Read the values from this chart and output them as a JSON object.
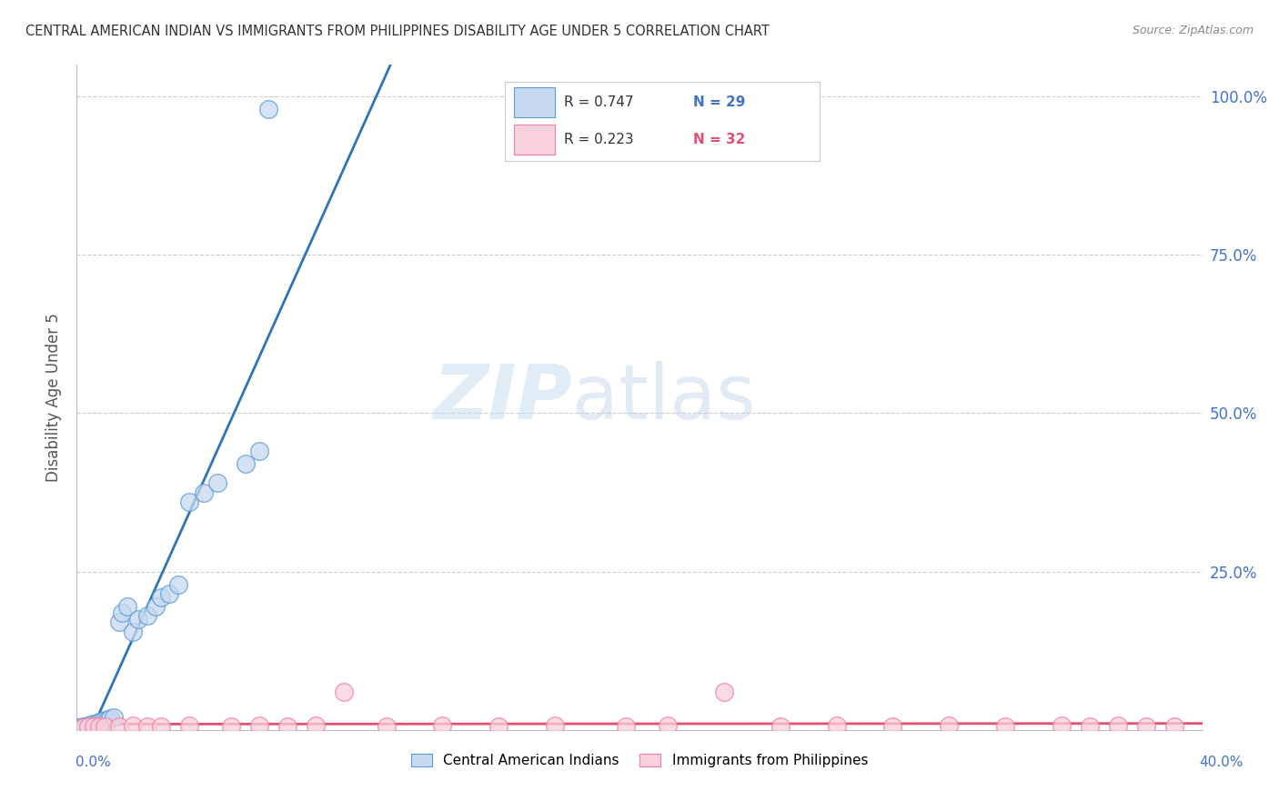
{
  "title": "CENTRAL AMERICAN INDIAN VS IMMIGRANTS FROM PHILIPPINES DISABILITY AGE UNDER 5 CORRELATION CHART",
  "source": "Source: ZipAtlas.com",
  "ylabel": "Disability Age Under 5",
  "watermark_zip": "ZIP",
  "watermark_atlas": "atlas",
  "legend_r1": "R = 0.747",
  "legend_n1": "N = 29",
  "legend_r2": "R = 0.223",
  "legend_n2": "N = 32",
  "legend_label1": "Central American Indians",
  "legend_label2": "Immigrants from Philippines",
  "ytick_vals": [
    0.0,
    0.25,
    0.5,
    0.75,
    1.0
  ],
  "ytick_labels": [
    "",
    "25.0%",
    "50.0%",
    "75.0%",
    "100.0%"
  ],
  "xlim": [
    0.0,
    0.4
  ],
  "ylim": [
    0.0,
    1.05
  ],
  "blue_fill": "#c6d9f0",
  "blue_edge": "#5b9bd5",
  "blue_line": "#2e75b6",
  "pink_fill": "#f9d0dc",
  "pink_edge": "#f07fa0",
  "pink_line": "#e05070",
  "dash_color": "#a0b8d0",
  "grid_color": "#cccccc",
  "tick_color": "#4472C4",
  "ylabel_color": "#555555",
  "title_color": "#333333",
  "source_color": "#888888",
  "bg_color": "#ffffff",
  "blue_x": [
    0.001,
    0.002,
    0.003,
    0.004,
    0.005,
    0.006,
    0.007,
    0.008,
    0.009,
    0.01,
    0.011,
    0.012,
    0.013,
    0.015,
    0.016,
    0.018,
    0.02,
    0.022,
    0.025,
    0.028,
    0.03,
    0.033,
    0.036,
    0.04,
    0.045,
    0.05,
    0.06,
    0.065,
    0.068
  ],
  "blue_y": [
    0.004,
    0.005,
    0.006,
    0.007,
    0.008,
    0.01,
    0.01,
    0.012,
    0.014,
    0.015,
    0.015,
    0.018,
    0.02,
    0.17,
    0.185,
    0.195,
    0.155,
    0.175,
    0.18,
    0.195,
    0.21,
    0.215,
    0.23,
    0.36,
    0.375,
    0.39,
    0.42,
    0.44,
    0.98
  ],
  "pink_x": [
    0.002,
    0.004,
    0.006,
    0.008,
    0.01,
    0.015,
    0.02,
    0.025,
    0.03,
    0.04,
    0.055,
    0.065,
    0.075,
    0.085,
    0.095,
    0.11,
    0.13,
    0.15,
    0.17,
    0.195,
    0.21,
    0.23,
    0.25,
    0.27,
    0.29,
    0.31,
    0.33,
    0.35,
    0.36,
    0.37,
    0.38,
    0.39
  ],
  "pink_y": [
    0.004,
    0.005,
    0.006,
    0.005,
    0.006,
    0.006,
    0.007,
    0.006,
    0.005,
    0.007,
    0.006,
    0.007,
    0.006,
    0.007,
    0.06,
    0.006,
    0.007,
    0.006,
    0.007,
    0.006,
    0.007,
    0.06,
    0.006,
    0.007,
    0.006,
    0.007,
    0.006,
    0.007,
    0.006,
    0.007,
    0.006,
    0.006
  ]
}
